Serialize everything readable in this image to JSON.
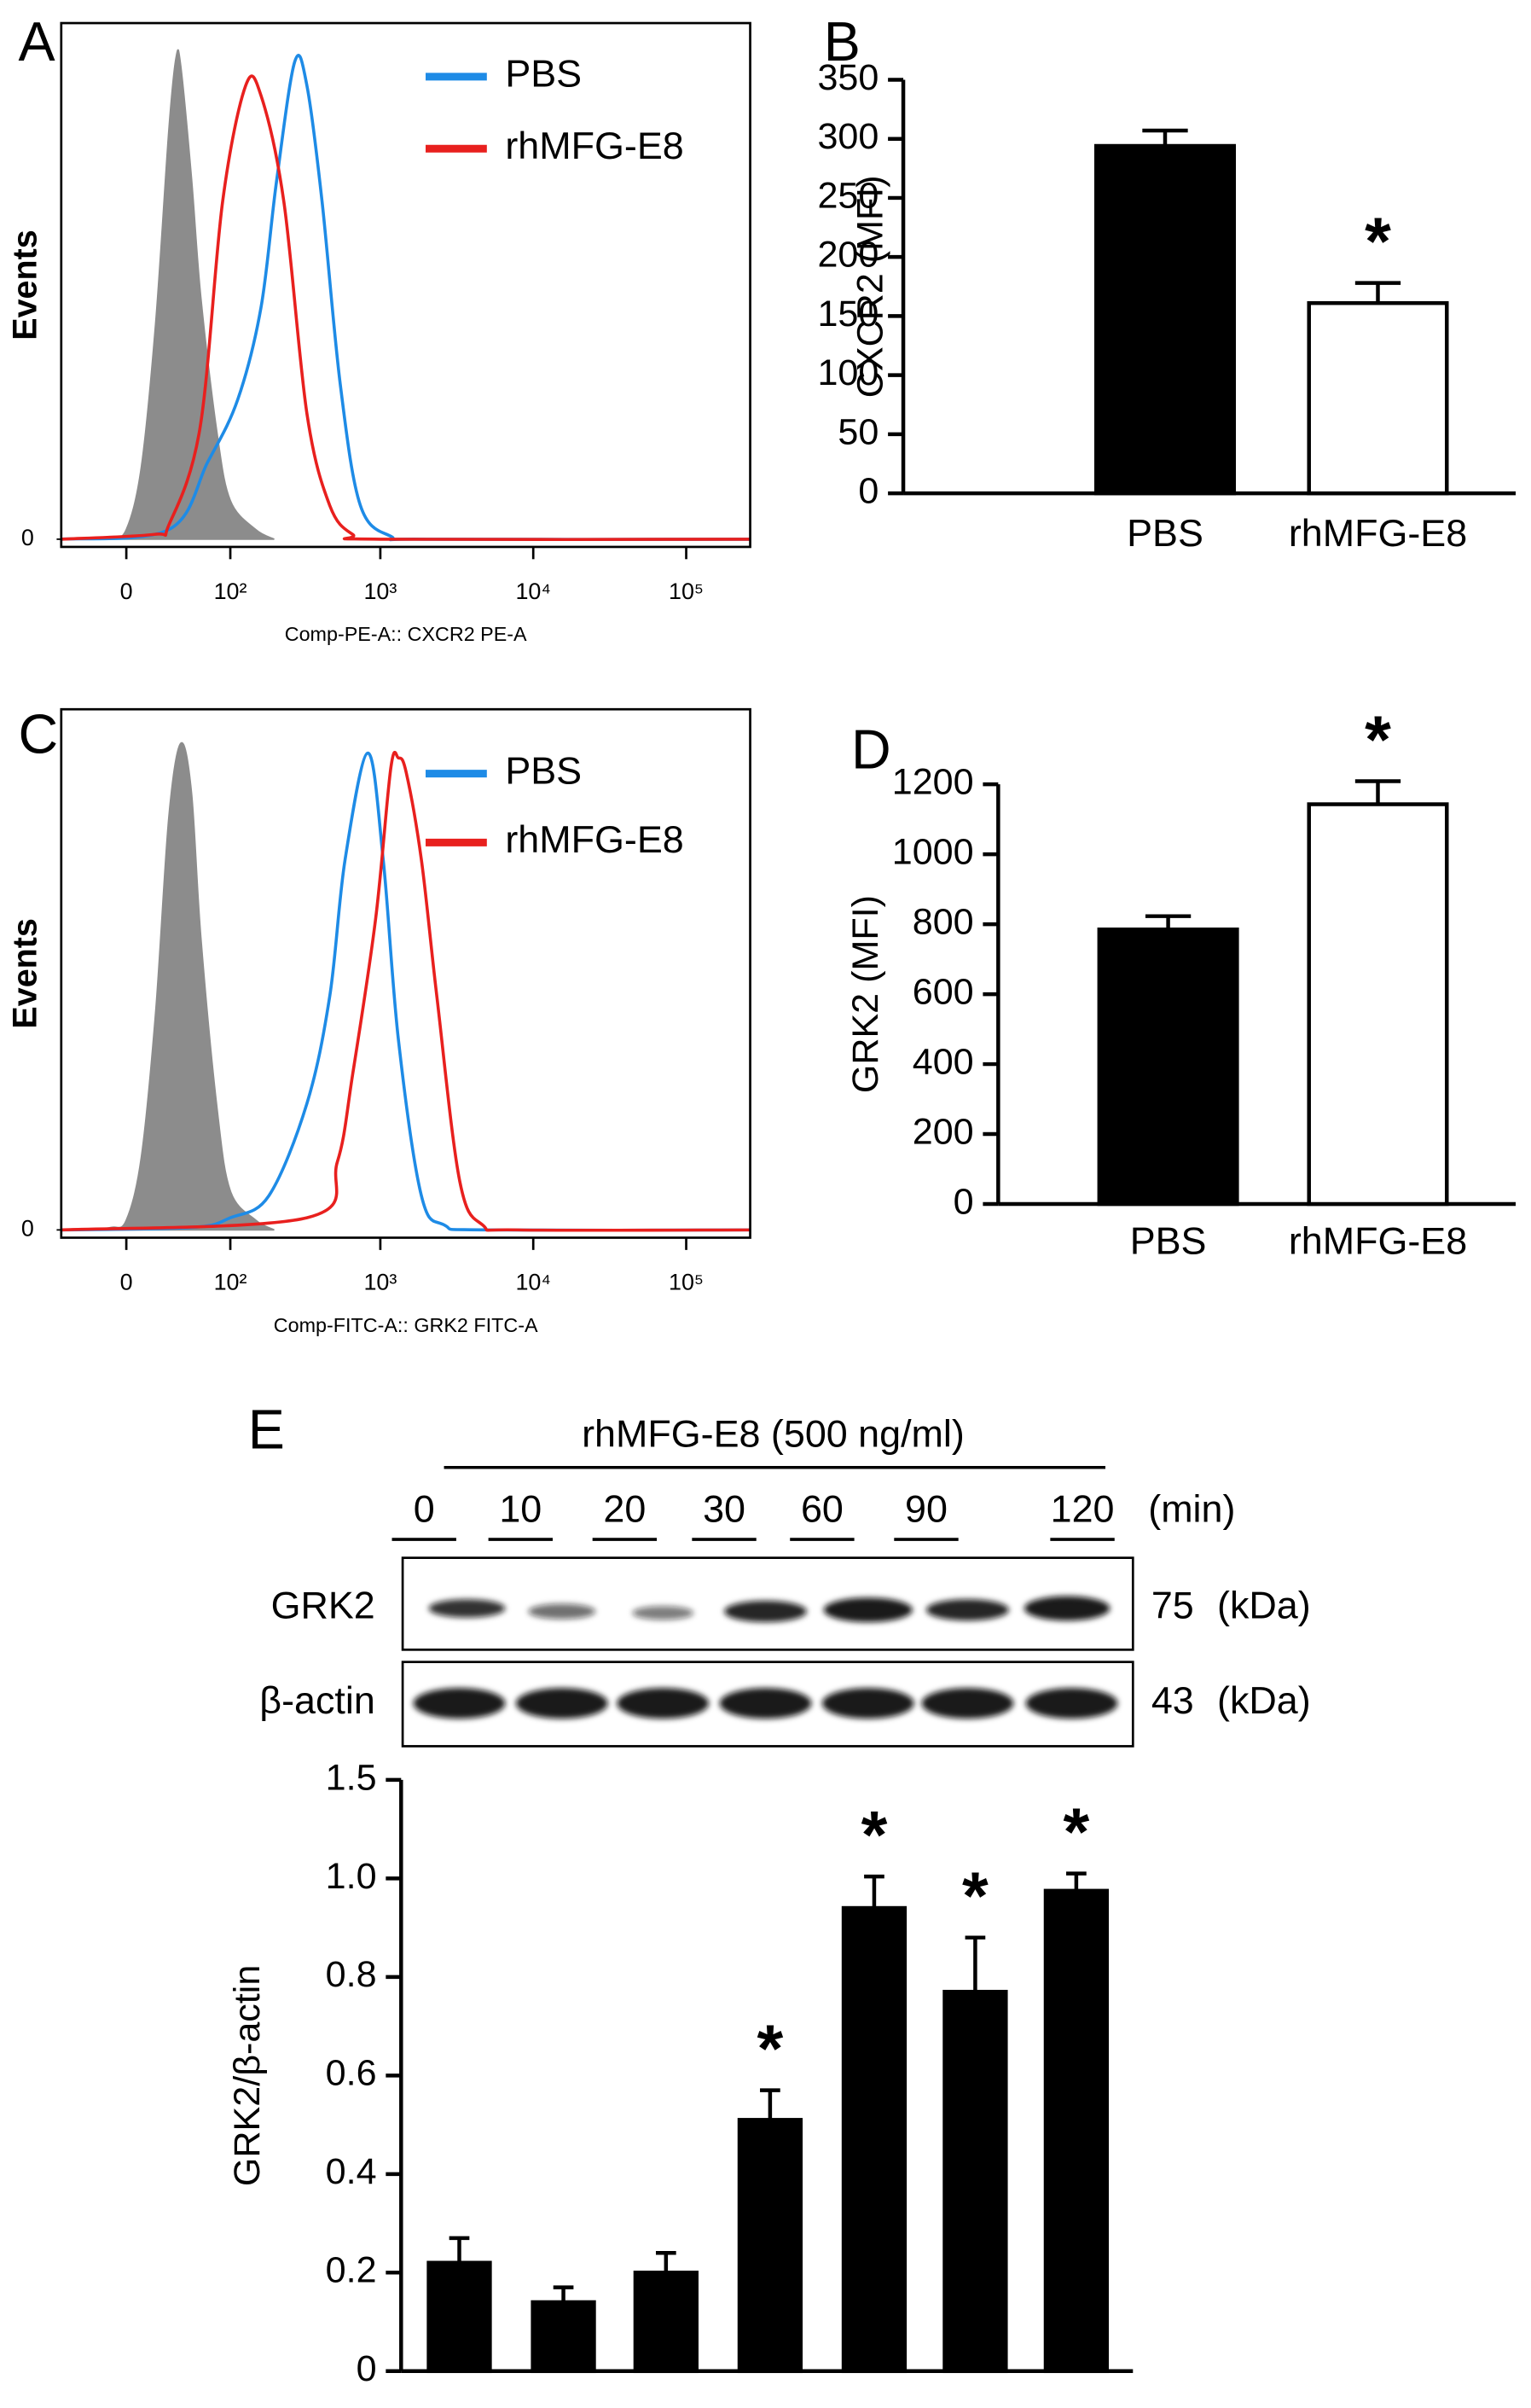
{
  "chart_data": [
    {
      "type": "line",
      "panel": "A",
      "ylabel": "Events",
      "xlabel": "Comp-PE-A:: CXCR2 PE-A",
      "xscale": "asinh",
      "xlim": [
        -50,
        262000
      ],
      "ylim": [
        -1.6,
        107
      ],
      "xticks": [
        0,
        {
          "value": 100,
          "label": "10²"
        },
        {
          "value": 1000,
          "label": "10³"
        },
        {
          "value": 10000,
          "label": "10⁴"
        },
        {
          "value": 100000,
          "label": "10⁵"
        }
      ],
      "yticks": [
        0
      ],
      "series": [
        {
          "color": "#8c8c8c",
          "filled": true,
          "x": [
            -30,
            -10,
            0,
            10,
            20,
            30,
            36,
            40,
            50,
            60,
            80,
            100,
            150,
            200
          ],
          "values": [
            0,
            0.5,
            2,
            15,
            45,
            85,
            100,
            98,
            75,
            50,
            22,
            8,
            2,
            0
          ]
        },
        {
          "name": "PBS",
          "color": "#1e8be6",
          "x": [
            -50,
            30,
            68,
            113,
            163,
            207,
            274,
            330,
            415,
            547,
            740,
            1172,
            2000,
            262000
          ],
          "values": [
            0,
            2,
            16,
            29,
            48,
            74,
            99,
            94,
            70,
            32,
            7,
            0.6,
            0,
            0
          ]
        },
        {
          "name": "rhMFG-E8",
          "color": "#e8201e",
          "x": [
            -50,
            19,
            30,
            59,
            88,
            128,
            163,
            232,
            330,
            466,
            659,
            1000,
            262000
          ],
          "values": [
            0,
            1,
            3,
            23,
            70,
            94,
            92,
            70,
            26,
            7,
            1,
            0,
            0
          ]
        }
      ]
    },
    {
      "type": "bar",
      "panel": "B",
      "ylabel": "CXCR2 (MFI)",
      "categories": [
        "PBS",
        "rhMFG-E8"
      ],
      "values": [
        294,
        161
      ],
      "errors": [
        13,
        17
      ],
      "colors": [
        "#000000",
        "#ffffff"
      ],
      "ylim": [
        0,
        350
      ],
      "yticks": [
        0,
        50,
        100,
        150,
        200,
        250,
        300,
        350
      ],
      "annotations": [
        {
          "text": "*",
          "category": "rhMFG-E8"
        }
      ]
    },
    {
      "type": "line",
      "panel": "C",
      "ylabel": "Events",
      "xlabel": "Comp-FITC-A:: GRK2 FITC-A",
      "xscale": "asinh",
      "xlim": [
        -50,
        262000
      ],
      "ylim": [
        -1.6,
        107
      ],
      "xticks": [
        0,
        {
          "value": 100,
          "label": "10²"
        },
        {
          "value": 1000,
          "label": "10³"
        },
        {
          "value": 10000,
          "label": "10⁴"
        },
        {
          "value": 100000,
          "label": "10⁵"
        }
      ],
      "yticks": [
        0
      ],
      "series": [
        {
          "color": "#8c8c8c",
          "filled": true,
          "x": [
            -30,
            -10,
            0,
            10,
            20,
            30,
            40,
            50,
            60,
            80,
            100,
            150,
            200
          ],
          "values": [
            0,
            0.5,
            2,
            15,
            45,
            85,
            100,
            90,
            60,
            25,
            8,
            2,
            0
          ]
        },
        {
          "name": "PBS",
          "color": "#1e8be6",
          "x": [
            -50,
            50,
            100,
            184,
            330,
            466,
            587,
            830,
            1045,
            1314,
            1857,
            2625,
            5000,
            262000
          ],
          "values": [
            0,
            0.5,
            2.5,
            7,
            26,
            48,
            76,
            98,
            76,
            39,
            7,
            1,
            0,
            0
          ]
        },
        {
          "name": "rhMFG-E8",
          "color": "#e8201e",
          "x": [
            -50,
            330,
            523,
            659,
            932,
            1172,
            1314,
            1477,
            1857,
            2342,
            3307,
            4671,
            8000,
            262000
          ],
          "values": [
            0,
            2.5,
            14,
            32,
            64,
            95,
            97,
            94,
            76,
            48,
            10,
            1,
            0,
            0
          ]
        }
      ]
    },
    {
      "type": "bar",
      "panel": "D",
      "ylabel": "GRK2  (MFI)",
      "categories": [
        "PBS",
        "rhMFG-E8"
      ],
      "values": [
        785,
        1143
      ],
      "errors": [
        38,
        66
      ],
      "colors": [
        "#000000",
        "#ffffff"
      ],
      "ylim": [
        0,
        1200
      ],
      "yticks": [
        0,
        200,
        400,
        600,
        800,
        1000,
        1200
      ],
      "annotations": [
        {
          "text": "*",
          "category": "rhMFG-E8"
        }
      ]
    },
    {
      "type": "bar",
      "panel": "E",
      "ylabel": "GRK2/β-actin",
      "categories": [
        "0",
        "10",
        "20",
        "30",
        "60",
        "90",
        "120"
      ],
      "values": [
        0.22,
        0.14,
        0.2,
        0.51,
        0.94,
        0.77,
        0.975
      ],
      "errors": [
        0.05,
        0.03,
        0.04,
        0.06,
        0.07,
        0.11,
        0.05
      ],
      "color": "#000000",
      "ylim": [
        0,
        1.5
      ],
      "yticks": [
        0,
        0.2,
        0.4,
        0.6,
        0.8,
        {
          "value": 1,
          "label": "1.0"
        },
        1.5
      ],
      "annotations": [
        {
          "text": "*",
          "category": "30"
        },
        {
          "text": "*",
          "category": "60"
        },
        {
          "text": "*",
          "category": "90"
        },
        {
          "text": "*",
          "category": "120"
        }
      ],
      "blot": {
        "treatment": "rhMFG-E8 (500 ng/ml)",
        "time_unit": "(min)",
        "rows": [
          {
            "label": "GRK2",
            "size": 75,
            "unit": "(kDa)"
          },
          {
            "label": "β-actin",
            "size": 43,
            "unit": "(kDa)"
          }
        ]
      }
    }
  ]
}
